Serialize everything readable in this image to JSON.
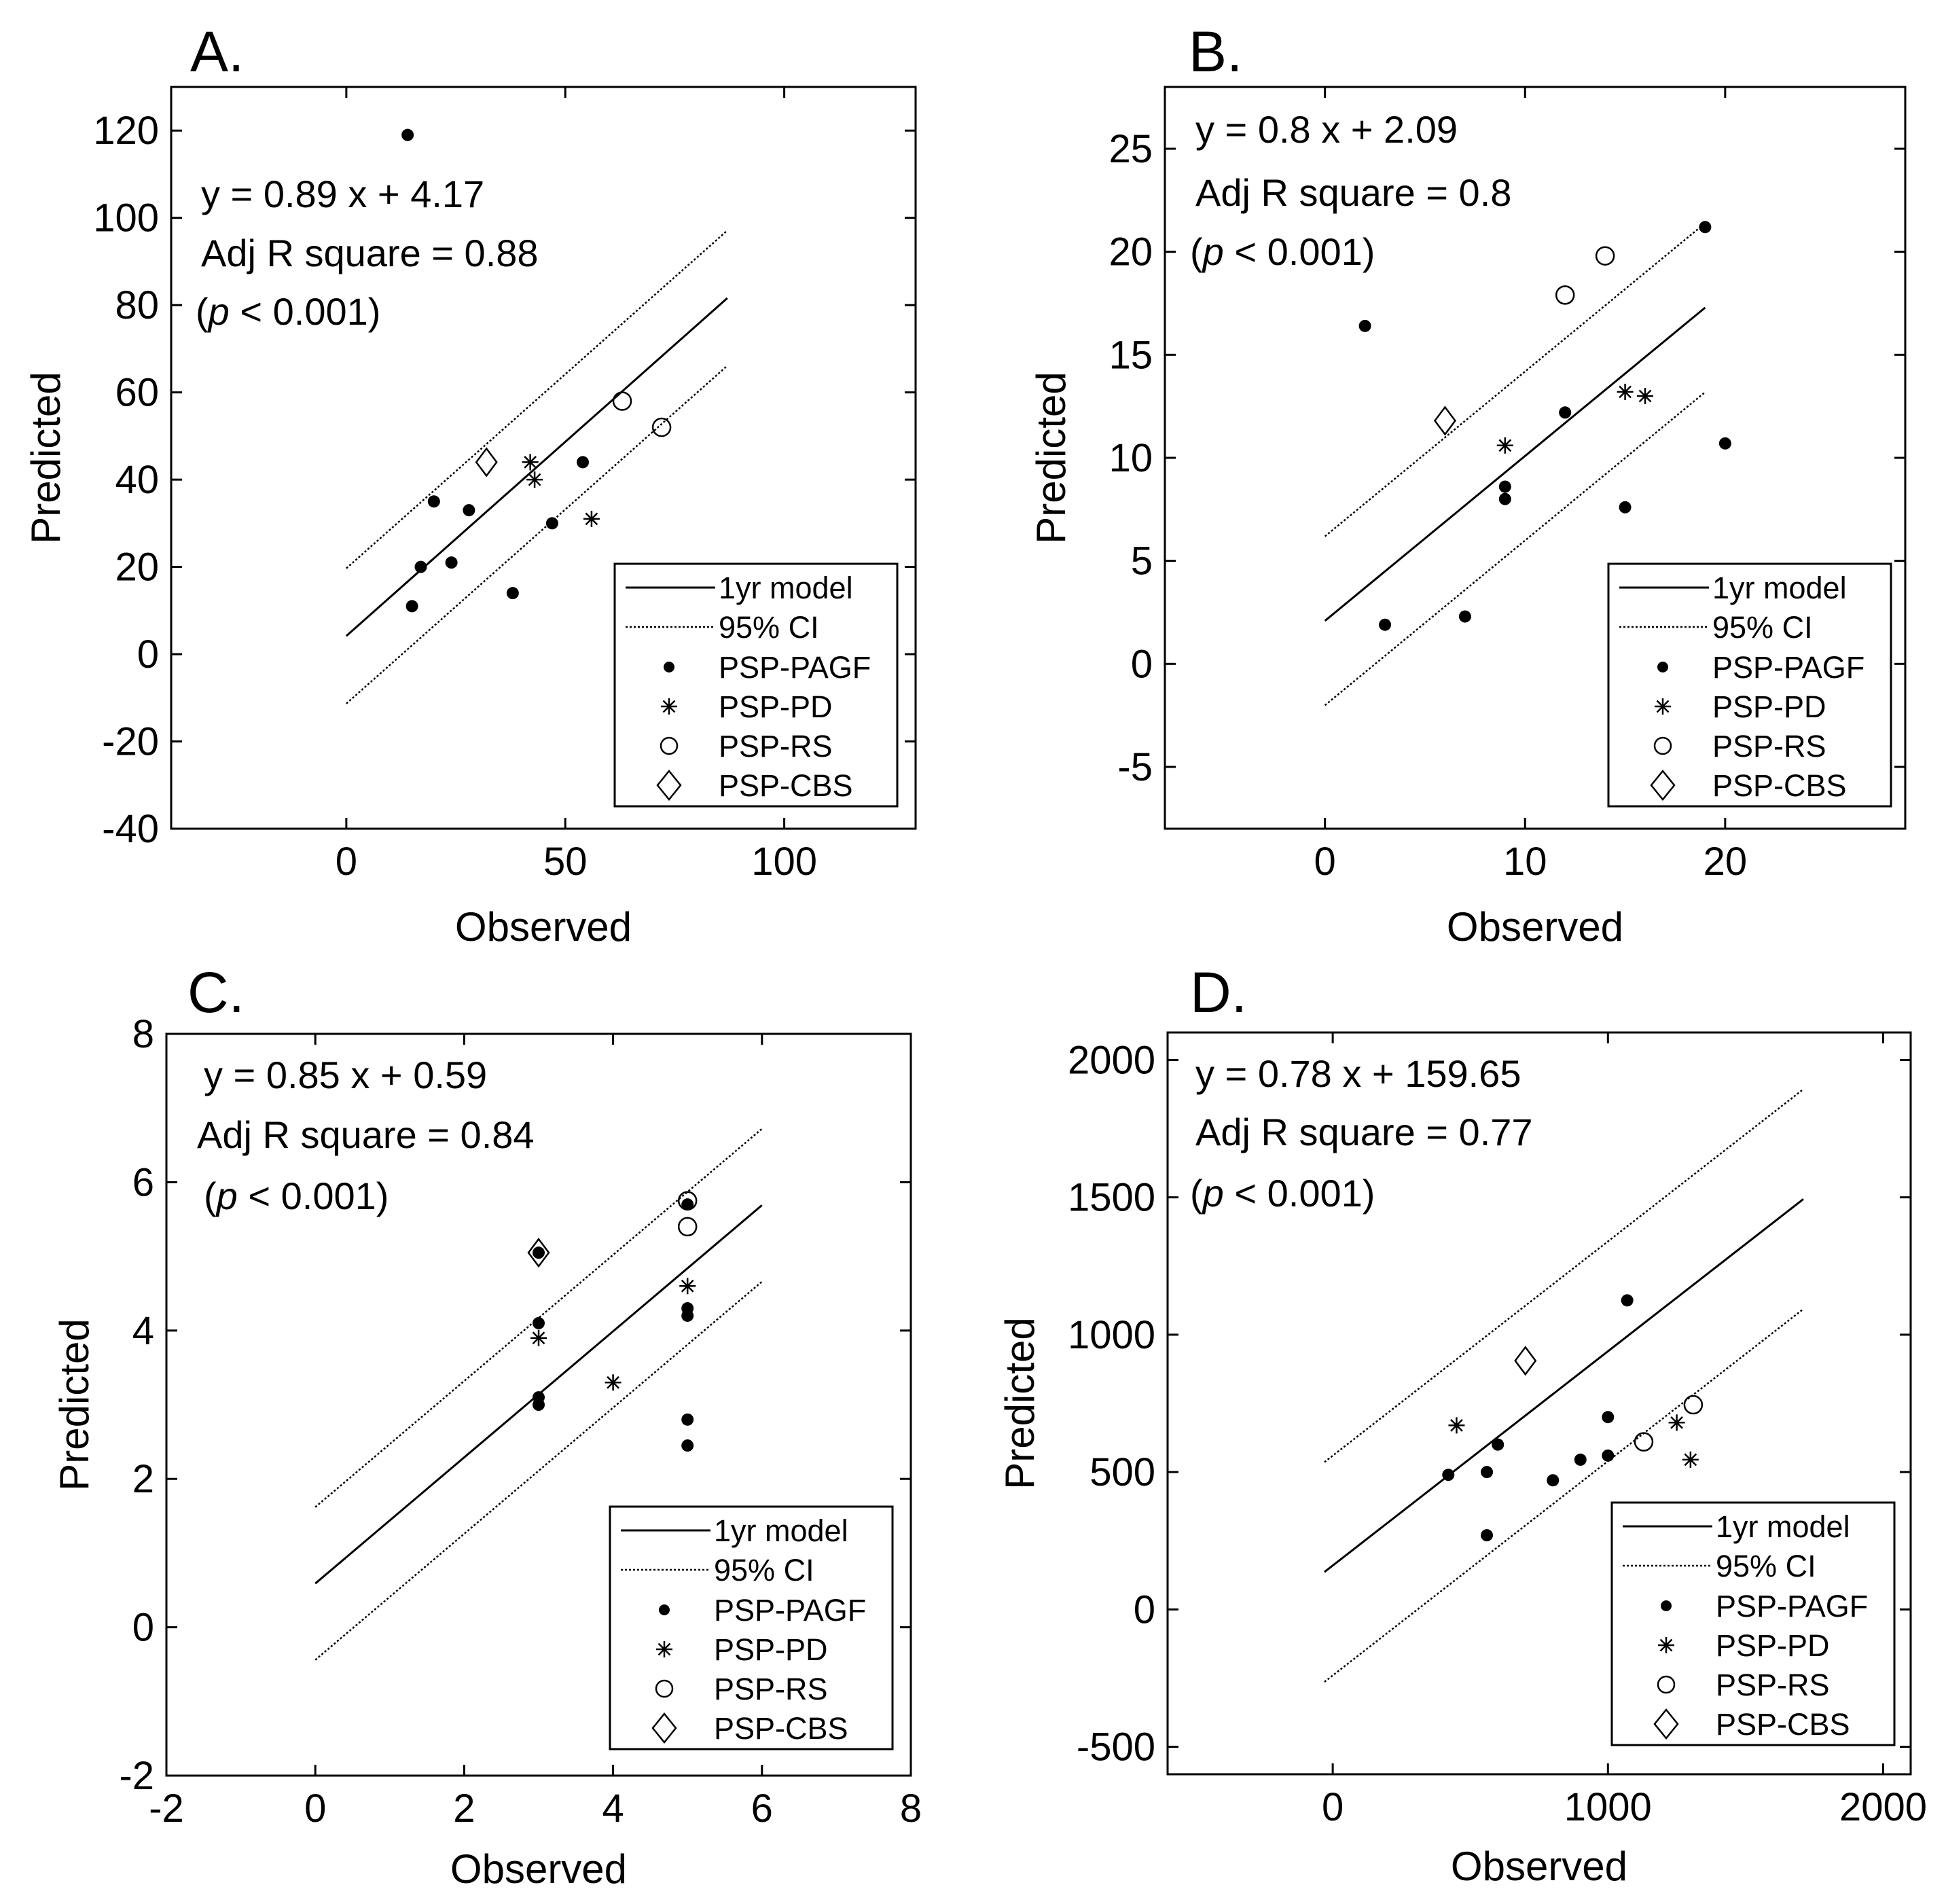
{
  "figure": {
    "panel_labels": [
      "A.",
      "B.",
      "C.",
      "D."
    ]
  },
  "legend": {
    "fit": "1yr model",
    "ci": "95% CI",
    "groups": [
      "PSP-PAGF",
      "PSP-PD",
      "PSP-RS",
      "PSP-CBS"
    ]
  },
  "chart_data": [
    {
      "type": "scatter",
      "panel": "A.",
      "xlabel": "Observed",
      "ylabel": "Predicted",
      "xlim": [
        -40,
        130
      ],
      "ylim": [
        -40,
        130
      ],
      "xticks": [
        "0",
        "50",
        "100"
      ],
      "yticks": [
        "-40",
        "-20",
        "0",
        "20",
        "40",
        "60",
        "80",
        "100",
        "120"
      ],
      "equation": "y = 0.89 x + 4.17",
      "adj_r2": "Adj R square = 0.88",
      "pvalue": {
        "pre": "(",
        "p": "p",
        "post": " < 0.001)"
      },
      "fit": {
        "slope": 0.89,
        "intercept": 4.17,
        "x_range": [
          0,
          87
        ],
        "ci_offset": 15.5
      },
      "series": [
        {
          "name": "PSP-PAGF",
          "marker": "dot",
          "points": [
            [
              14,
              119
            ],
            [
              15,
              11
            ],
            [
              17,
              20
            ],
            [
              20,
              35
            ],
            [
              24,
              21
            ],
            [
              28,
              33
            ],
            [
              38,
              14
            ],
            [
              47,
              30
            ],
            [
              54,
              44
            ]
          ]
        },
        {
          "name": "PSP-PD",
          "marker": "star",
          "points": [
            [
              42,
              44
            ],
            [
              43,
              40
            ],
            [
              56,
              31
            ]
          ]
        },
        {
          "name": "PSP-RS",
          "marker": "circle",
          "points": [
            [
              63,
              58
            ],
            [
              72,
              52
            ]
          ]
        },
        {
          "name": "PSP-CBS",
          "marker": "diamond",
          "points": [
            [
              32,
              44
            ]
          ]
        }
      ]
    },
    {
      "type": "scatter",
      "panel": "B.",
      "xlabel": "Observed",
      "ylabel": "Predicted",
      "xlim": [
        -8,
        29
      ],
      "ylim": [
        -8,
        28
      ],
      "xticks": [
        "0",
        "10",
        "20"
      ],
      "yticks": [
        "-5",
        "0",
        "5",
        "10",
        "15",
        "20",
        "25"
      ],
      "equation": "y = 0.8 x + 2.09",
      "adj_r2": "Adj R square = 0.8",
      "pvalue": {
        "pre": "(",
        "p": "p",
        "post": " < 0.001)"
      },
      "fit": {
        "slope": 0.8,
        "intercept": 2.09,
        "x_range": [
          0,
          19
        ],
        "ci_offset": 4.1
      },
      "series": [
        {
          "name": "PSP-PAGF",
          "marker": "dot",
          "points": [
            [
              2,
              16.4
            ],
            [
              3,
              1.9
            ],
            [
              7,
              2.3
            ],
            [
              9,
              8.6
            ],
            [
              9,
              8
            ],
            [
              12,
              12.2
            ],
            [
              15,
              7.6
            ],
            [
              19,
              21.2
            ],
            [
              20,
              10.7
            ]
          ]
        },
        {
          "name": "PSP-PD",
          "marker": "star",
          "points": [
            [
              9,
              10.6
            ],
            [
              15,
              13.2
            ],
            [
              16,
              13
            ]
          ]
        },
        {
          "name": "PSP-RS",
          "marker": "circle",
          "points": [
            [
              12,
              17.9
            ],
            [
              14,
              19.8
            ]
          ]
        },
        {
          "name": "PSP-CBS",
          "marker": "diamond",
          "points": [
            [
              6,
              11.8
            ]
          ]
        }
      ]
    },
    {
      "type": "scatter",
      "panel": "C.",
      "xlabel": "Observed",
      "ylabel": "Predicted",
      "xlim": [
        -2,
        8
      ],
      "ylim": [
        -2,
        8
      ],
      "xticks": [
        "-2",
        "0",
        "2",
        "4",
        "6",
        "8"
      ],
      "yticks": [
        "-2",
        "0",
        "2",
        "4",
        "6",
        "8"
      ],
      "equation": "y = 0.85 x + 0.59",
      "adj_r2": "Adj R square = 0.84",
      "pvalue": {
        "pre": "(",
        "p": "p",
        "post": " < 0.001)"
      },
      "fit": {
        "slope": 0.85,
        "intercept": 0.59,
        "x_range": [
          0,
          6
        ],
        "ci_offset": 1.03
      },
      "series": [
        {
          "name": "PSP-PAGF",
          "marker": "dot",
          "points": [
            [
              3,
              4.1
            ],
            [
              3,
              3.1
            ],
            [
              3,
              3.0
            ],
            [
              3,
              5.05
            ],
            [
              5,
              5.7
            ],
            [
              5,
              4.3
            ],
            [
              5,
              4.2
            ],
            [
              5,
              2.8
            ],
            [
              5,
              2.45
            ]
          ]
        },
        {
          "name": "PSP-PD",
          "marker": "star",
          "points": [
            [
              3,
              3.9
            ],
            [
              4,
              3.3
            ],
            [
              5,
              4.6
            ]
          ]
        },
        {
          "name": "PSP-RS",
          "marker": "circle",
          "points": [
            [
              5,
              5.75
            ],
            [
              5,
              5.4
            ]
          ]
        },
        {
          "name": "PSP-CBS",
          "marker": "diamond",
          "points": [
            [
              3,
              5.05
            ]
          ]
        }
      ]
    },
    {
      "type": "scatter",
      "panel": "D.",
      "xlabel": "Observed",
      "ylabel": "Predicted",
      "xlim": [
        -600,
        2100
      ],
      "ylim": [
        -600,
        2100
      ],
      "xticks": [
        "0",
        "1000",
        "2000"
      ],
      "yticks": [
        "-500",
        "0",
        "500",
        "1000",
        "1500",
        "2000"
      ],
      "equation": "y = 0.78 x + 159.65",
      "adj_r2": "Adj R square = 0.77",
      "pvalue": {
        "pre": "(",
        "p": "p",
        "post": " < 0.001)"
      },
      "fit": {
        "slope": 0.78,
        "intercept": 159.65,
        "x_range": [
          -30,
          1710
        ],
        "ci_offset": 400
      },
      "series": [
        {
          "name": "PSP-PAGF",
          "marker": "dot",
          "points": [
            [
              420,
              490
            ],
            [
              560,
              500
            ],
            [
              560,
              270
            ],
            [
              600,
              600
            ],
            [
              800,
              470
            ],
            [
              900,
              545
            ],
            [
              1000,
              700
            ],
            [
              1000,
              560
            ],
            [
              1070,
              1125
            ]
          ]
        },
        {
          "name": "PSP-PD",
          "marker": "star",
          "points": [
            [
              450,
              670
            ],
            [
              1250,
              680
            ],
            [
              1300,
              545
            ]
          ]
        },
        {
          "name": "PSP-RS",
          "marker": "circle",
          "points": [
            [
              1130,
              610
            ],
            [
              1310,
              745
            ]
          ]
        },
        {
          "name": "PSP-CBS",
          "marker": "diamond",
          "points": [
            [
              700,
              905
            ]
          ]
        }
      ]
    }
  ]
}
